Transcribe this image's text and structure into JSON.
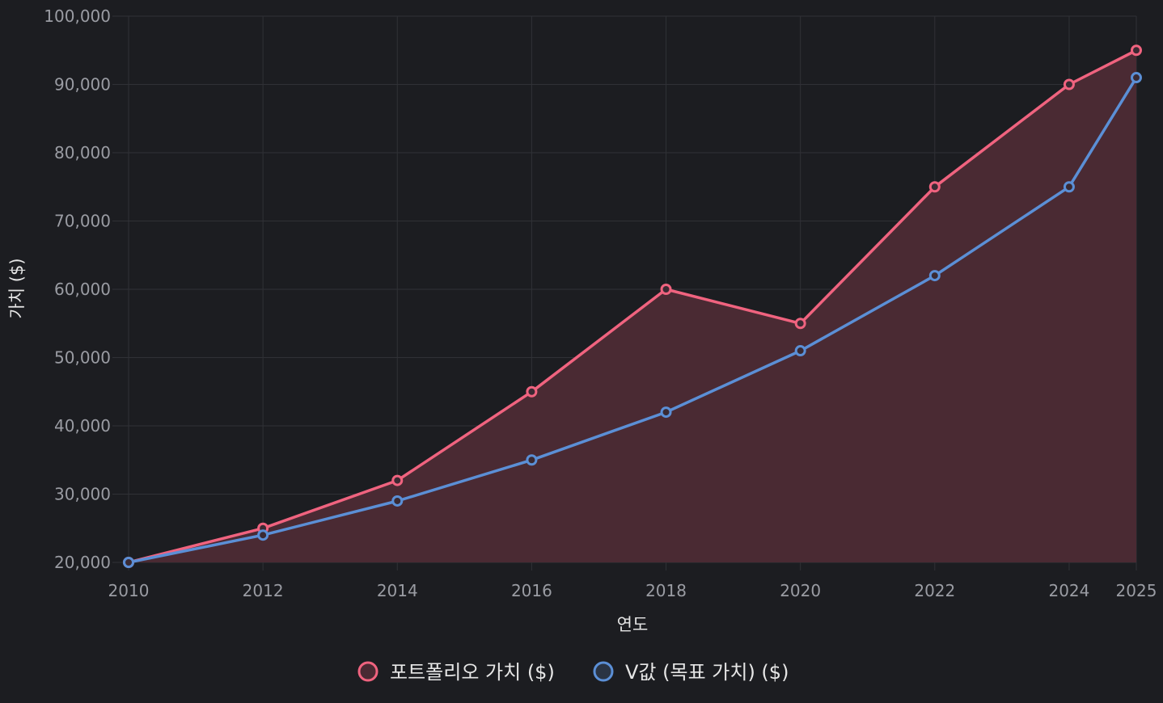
{
  "chart_data": {
    "type": "line",
    "x": [
      2010,
      2012,
      2014,
      2016,
      2018,
      2020,
      2022,
      2024,
      2025
    ],
    "xlabel": "연도",
    "ylabel": "가치 ($)",
    "xlim": [
      2010,
      2025
    ],
    "ylim": [
      20000,
      100000
    ],
    "x_ticks": [
      "2010",
      "2012",
      "2014",
      "2016",
      "2018",
      "2020",
      "2022",
      "2024",
      "2025"
    ],
    "y_ticks": [
      "20,000",
      "30,000",
      "40,000",
      "50,000",
      "60,000",
      "70,000",
      "80,000",
      "90,000",
      "100,000"
    ],
    "grid": true,
    "legend_position": "bottom",
    "series": [
      {
        "name": "포트폴리오 가치 ($)",
        "values": [
          20000,
          25000,
          32000,
          45000,
          60000,
          55000,
          75000,
          90000,
          95000
        ],
        "color": "#f0637f",
        "fill": true,
        "fill_color": "#4a2a33"
      },
      {
        "name": "V값 (목표 가치) ($)",
        "values": [
          20000,
          24000,
          29000,
          35000,
          42000,
          51000,
          62000,
          75000,
          91000
        ],
        "color": "#5b8fd6",
        "fill": false
      }
    ]
  }
}
